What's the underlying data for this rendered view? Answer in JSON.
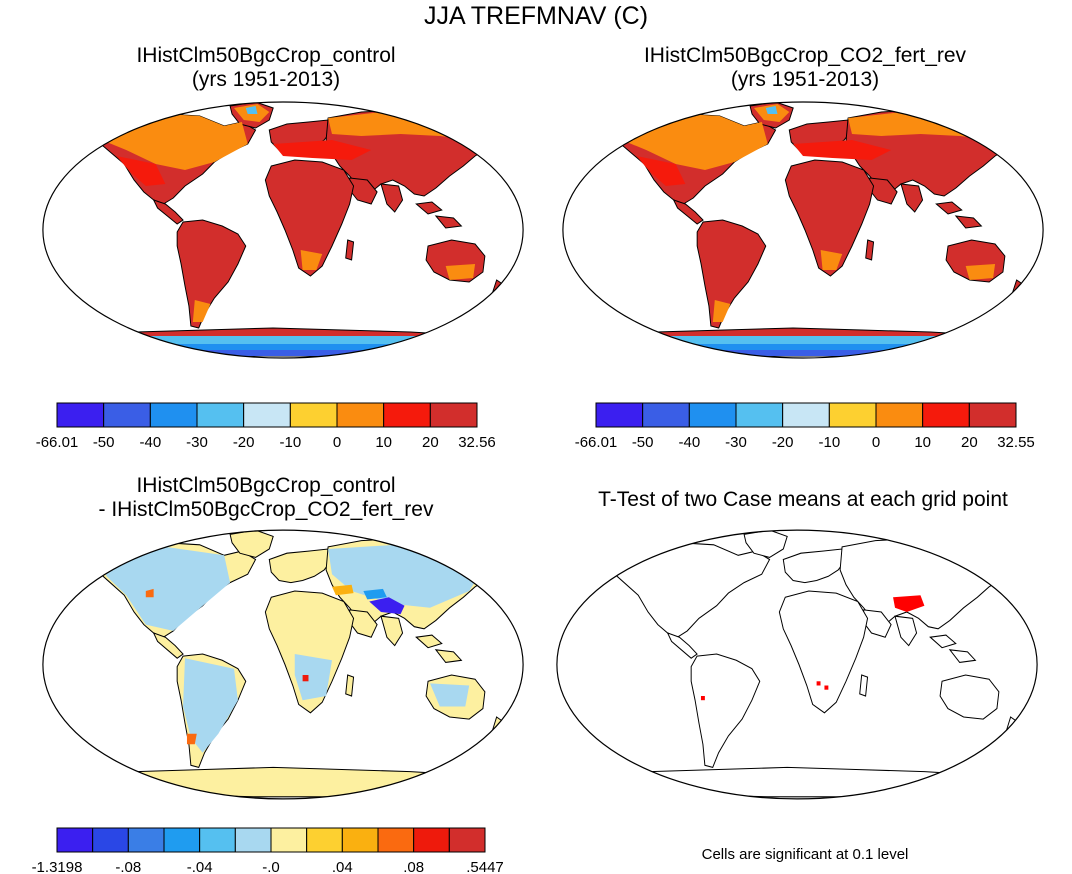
{
  "figure": {
    "title": "JJA TREFMNAV (C)",
    "land_outline_color": "#000000",
    "ocean_color": "#ffffff"
  },
  "panels": {
    "control": {
      "title_line1": "IHistClm50BgcCrop_control",
      "title_line2": "(yrs 1951-2013)"
    },
    "co2": {
      "title_line1": "IHistClm50BgcCrop_CO2_fert_rev",
      "title_line2": "(yrs 1951-2013)"
    },
    "diff": {
      "title_line1": "IHistClm50BgcCrop_control",
      "title_line2": "- IHistClm50BgcCrop_CO2_fert_rev"
    },
    "ttest": {
      "title": "T-Test of two Case means at each grid point",
      "note": "Cells are significant at 0.1 level",
      "significant_color": "#ff0000"
    }
  },
  "colorbars": {
    "abs_control": {
      "colors": [
        "#3b1ff0",
        "#3a5ee6",
        "#1f90f0",
        "#55c0f0",
        "#c8e6f5",
        "#fdd030",
        "#fa8c10",
        "#f51a0c",
        "#d22e2c"
      ],
      "labels": [
        "-66.01",
        "-50",
        "-40",
        "-30",
        "-20",
        "-10",
        "0",
        "10",
        "20",
        "32.56"
      ]
    },
    "abs_co2": {
      "colors": [
        "#3b1ff0",
        "#3a5ee6",
        "#1f90f0",
        "#55c0f0",
        "#c8e6f5",
        "#fdd030",
        "#fa8c10",
        "#f51a0c",
        "#d22e2c"
      ],
      "labels": [
        "-66.01",
        "-50",
        "-40",
        "-30",
        "-20",
        "-10",
        "0",
        "10",
        "20",
        "32.55"
      ]
    },
    "diff": {
      "colors": [
        "#3b1ff0",
        "#2a47e6",
        "#3a7ee6",
        "#1f9cf0",
        "#55c0f0",
        "#a8d8f0",
        "#fdf0a0",
        "#fdd030",
        "#fab010",
        "#fa6a10",
        "#ee1a0c",
        "#d22e2c"
      ],
      "labels": [
        "-1.3198",
        "-.08",
        "-.04",
        "-.0",
        ".04",
        ".08",
        ".5447"
      ]
    }
  }
}
